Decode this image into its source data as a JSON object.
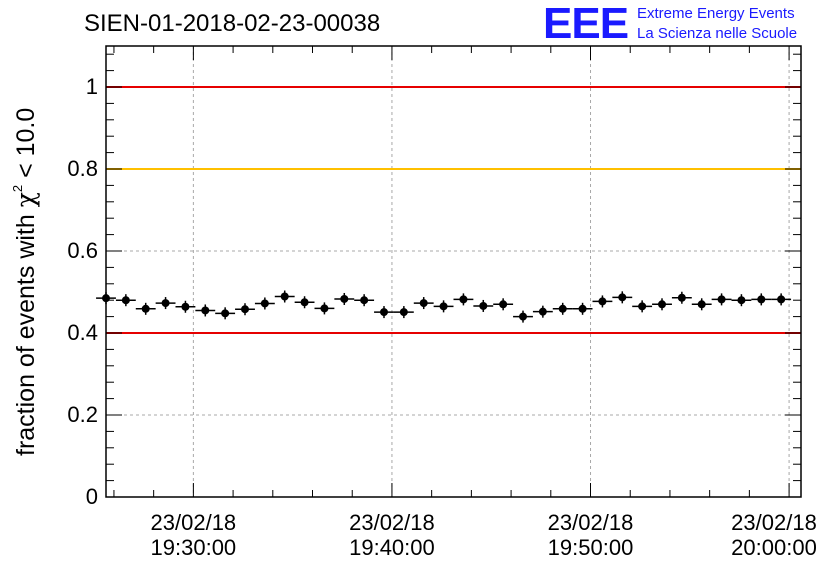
{
  "header": {
    "run_id": "SIEN-01-2018-02-23-00038"
  },
  "logo": {
    "mark": "EEE",
    "line1": "Extreme Energy Events",
    "line2": "La Scienza nelle Scuole",
    "color": "#1a1aff"
  },
  "chart_data": {
    "type": "scatter",
    "ylabel_prefix": "fraction of events with ",
    "ylabel_symbol": "χ",
    "ylabel_power": "2",
    "ylabel_suffix": " < 10.0",
    "ylim": [
      0,
      1.1
    ],
    "yticks": [
      {
        "value": 0,
        "label": "0"
      },
      {
        "value": 0.2,
        "label": "0.2"
      },
      {
        "value": 0.4,
        "label": "0.4"
      },
      {
        "value": 0.6,
        "label": "0.6"
      },
      {
        "value": 0.8,
        "label": "0.8"
      },
      {
        "value": 1,
        "label": "1"
      }
    ],
    "xlim": [
      "19:25:36",
      "20:00:36"
    ],
    "xticks": [
      {
        "time": "19:30:00",
        "date": "23/02/18",
        "clock": "19:30:00"
      },
      {
        "time": "19:40:00",
        "date": "23/02/18",
        "clock": "19:40:00"
      },
      {
        "time": "19:50:00",
        "date": "23/02/18",
        "clock": "19:50:00"
      },
      {
        "time": "20:00:00",
        "date": "23/02/18",
        "clock": "20:00:00"
      }
    ],
    "grid": true,
    "reference_lines": [
      {
        "y": 1.0,
        "color": "#e60000"
      },
      {
        "y": 0.8,
        "color": "#ffc000"
      },
      {
        "y": 0.4,
        "color": "#e60000"
      }
    ],
    "bin_width_seconds": 60,
    "series": [
      {
        "x": [
          "19:25:36",
          "19:26:36",
          "19:27:36",
          "19:28:36",
          "19:29:36",
          "19:30:36",
          "19:31:36",
          "19:32:36",
          "19:33:36",
          "19:34:36",
          "19:35:36",
          "19:36:36",
          "19:37:36",
          "19:38:36",
          "19:39:36",
          "19:40:36",
          "19:41:36",
          "19:42:36",
          "19:43:36",
          "19:44:36",
          "19:45:36",
          "19:46:36",
          "19:47:36",
          "19:48:36",
          "19:49:36",
          "19:50:36",
          "19:51:36",
          "19:52:36",
          "19:53:36",
          "19:54:36",
          "19:55:36",
          "19:56:36",
          "19:57:36",
          "19:58:36",
          "19:59:36"
        ],
        "y": [
          0.485,
          0.48,
          0.459,
          0.473,
          0.464,
          0.455,
          0.448,
          0.458,
          0.472,
          0.489,
          0.475,
          0.46,
          0.483,
          0.48,
          0.451,
          0.451,
          0.473,
          0.465,
          0.482,
          0.466,
          0.47,
          0.44,
          0.452,
          0.459,
          0.459,
          0.477,
          0.487,
          0.465,
          0.47,
          0.486,
          0.47,
          0.482,
          0.48,
          0.482,
          0.482
        ],
        "color": "#000000"
      }
    ]
  }
}
